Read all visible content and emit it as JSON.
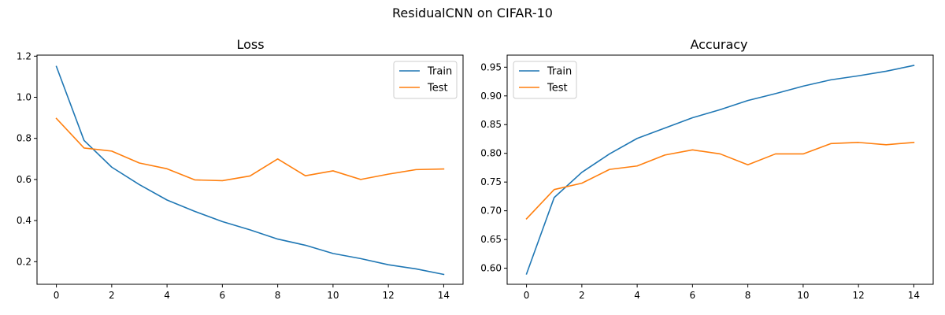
{
  "figure": {
    "suptitle": "ResidualCNN on CIFAR-10"
  },
  "colors": {
    "train": "#1f77b4",
    "test": "#ff7f0e",
    "axis": "#000000"
  },
  "chart_data": [
    {
      "type": "line",
      "title": "Loss",
      "xlabel": "",
      "ylabel": "",
      "x": [
        0,
        1,
        2,
        3,
        4,
        5,
        6,
        7,
        8,
        9,
        10,
        11,
        12,
        13,
        14
      ],
      "xlim": [
        -0.7,
        14.7
      ],
      "ylim": [
        0.09,
        1.205
      ],
      "xticks": [
        0,
        2,
        4,
        6,
        8,
        10,
        12,
        14
      ],
      "xtick_labels": [
        "0",
        "2",
        "4",
        "6",
        "8",
        "10",
        "12",
        "14"
      ],
      "yticks": [
        0.2,
        0.4,
        0.6,
        0.8,
        1.0,
        1.2
      ],
      "ytick_labels": [
        "0.2",
        "0.4",
        "0.6",
        "0.8",
        "1.0",
        "1.2"
      ],
      "grid": false,
      "legend": "upper right",
      "series": [
        {
          "name": "Train",
          "values": [
            1.15,
            0.79,
            0.66,
            0.575,
            0.5,
            0.445,
            0.395,
            0.355,
            0.31,
            0.28,
            0.24,
            0.215,
            0.185,
            0.165,
            0.138
          ]
        },
        {
          "name": "Test",
          "values": [
            0.897,
            0.753,
            0.738,
            0.68,
            0.652,
            0.598,
            0.594,
            0.617,
            0.7,
            0.618,
            0.642,
            0.6,
            0.626,
            0.648,
            0.651
          ]
        }
      ]
    },
    {
      "type": "line",
      "title": "Accuracy",
      "xlabel": "",
      "ylabel": "",
      "x": [
        0,
        1,
        2,
        3,
        4,
        5,
        6,
        7,
        8,
        9,
        10,
        11,
        12,
        13,
        14
      ],
      "xlim": [
        -0.7,
        14.7
      ],
      "ylim": [
        0.572,
        0.971
      ],
      "xticks": [
        0,
        2,
        4,
        6,
        8,
        10,
        12,
        14
      ],
      "xtick_labels": [
        "0",
        "2",
        "4",
        "6",
        "8",
        "10",
        "12",
        "14"
      ],
      "yticks": [
        0.6,
        0.65,
        0.7,
        0.75,
        0.8,
        0.85,
        0.9,
        0.95
      ],
      "ytick_labels": [
        "0.60",
        "0.65",
        "0.70",
        "0.75",
        "0.80",
        "0.85",
        "0.90",
        "0.95"
      ],
      "grid": false,
      "legend": "upper left",
      "series": [
        {
          "name": "Train",
          "values": [
            0.59,
            0.723,
            0.767,
            0.799,
            0.826,
            0.844,
            0.862,
            0.876,
            0.892,
            0.904,
            0.917,
            0.928,
            0.935,
            0.943,
            0.953
          ]
        },
        {
          "name": "Test",
          "values": [
            0.686,
            0.737,
            0.748,
            0.772,
            0.778,
            0.797,
            0.806,
            0.799,
            0.78,
            0.799,
            0.799,
            0.817,
            0.819,
            0.815,
            0.819
          ]
        }
      ]
    }
  ]
}
